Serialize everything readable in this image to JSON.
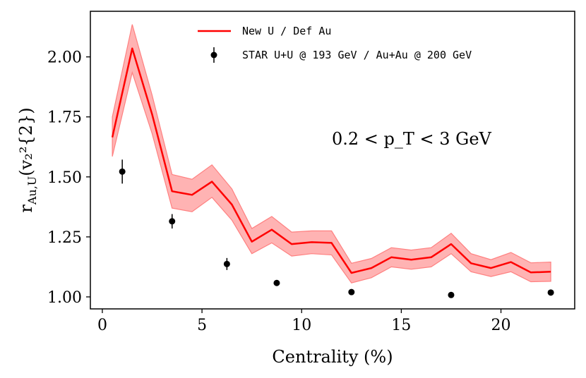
{
  "chart_data": {
    "type": "line",
    "xlabel": "Centrality (%)",
    "ylabel_main": "r",
    "ylabel_sub": "Au,U",
    "ylabel_args": "(v₂²{2})",
    "xlim": [
      -0.6,
      23.7
    ],
    "ylim": [
      0.95,
      2.19
    ],
    "x_ticks": [
      0,
      5,
      10,
      15,
      20
    ],
    "y_ticks": [
      1.0,
      1.25,
      1.5,
      1.75,
      2.0
    ],
    "y_tick_labels": [
      "1.00",
      "1.25",
      "1.50",
      "1.75",
      "2.00"
    ],
    "annotation": "0.2 < p_T < 3 GeV",
    "legend_position": "top-center",
    "series": [
      {
        "name": "New U / Def Au",
        "kind": "line-with-band",
        "color": "#ff0000",
        "band_color": "#ff8080",
        "x": [
          0.5,
          1.5,
          2.5,
          3.5,
          4.5,
          5.5,
          6.5,
          7.5,
          8.5,
          9.5,
          10.5,
          11.5,
          12.5,
          13.5,
          14.5,
          15.5,
          16.5,
          17.5,
          18.5,
          19.5,
          20.5,
          21.5,
          22.5
        ],
        "y": [
          1.665,
          2.035,
          1.76,
          1.44,
          1.425,
          1.48,
          1.385,
          1.23,
          1.28,
          1.22,
          1.228,
          1.225,
          1.1,
          1.12,
          1.165,
          1.155,
          1.165,
          1.22,
          1.14,
          1.12,
          1.145,
          1.102,
          1.105
        ],
        "y_low": [
          1.585,
          1.935,
          1.68,
          1.37,
          1.355,
          1.415,
          1.32,
          1.18,
          1.225,
          1.17,
          1.18,
          1.175,
          1.058,
          1.08,
          1.125,
          1.115,
          1.125,
          1.18,
          1.105,
          1.085,
          1.105,
          1.063,
          1.065
        ],
        "y_high": [
          1.75,
          2.135,
          1.84,
          1.51,
          1.49,
          1.55,
          1.45,
          1.285,
          1.335,
          1.27,
          1.275,
          1.275,
          1.14,
          1.16,
          1.205,
          1.195,
          1.205,
          1.265,
          1.18,
          1.155,
          1.185,
          1.142,
          1.145
        ]
      },
      {
        "name": "STAR U+U @ 193 GeV / Au+Au @ 200 GeV",
        "kind": "errorbar",
        "color": "#000000",
        "x": [
          1.0,
          3.5,
          6.25,
          8.75,
          12.5,
          17.5,
          22.5
        ],
        "y": [
          1.522,
          1.315,
          1.137,
          1.058,
          1.02,
          1.008,
          1.018
        ],
        "err": [
          0.05,
          0.03,
          0.025,
          0.005,
          0.005,
          0.005,
          0.005
        ]
      }
    ]
  }
}
